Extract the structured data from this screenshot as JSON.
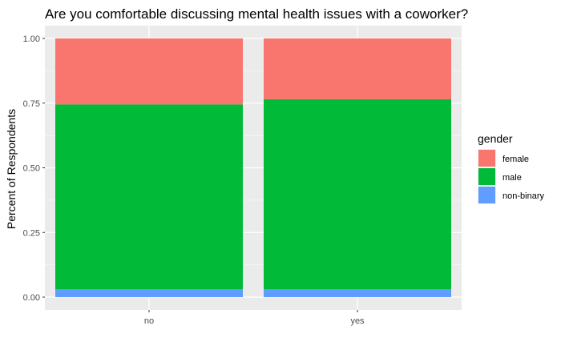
{
  "chart_data": {
    "type": "bar",
    "stacked": true,
    "title": "Are you comfortable discussing mental health issues with a coworker?",
    "xlabel": "",
    "ylabel": "Percent of Respondents",
    "categories": [
      "no",
      "yes"
    ],
    "ylim": [
      0,
      1
    ],
    "yticks": [
      "0.00",
      "0.25",
      "0.50",
      "0.75",
      "1.00"
    ],
    "ytick_values": [
      0,
      0.25,
      0.5,
      0.75,
      1.0
    ],
    "grid": true,
    "legend": {
      "title": "gender",
      "position": "right",
      "entries": [
        "female",
        "male",
        "non-binary"
      ]
    },
    "series": [
      {
        "name": "non-binary",
        "color": "#619CFF",
        "values": [
          0.03,
          0.03
        ]
      },
      {
        "name": "male",
        "color": "#00BA38",
        "values": [
          0.715,
          0.735
        ]
      },
      {
        "name": "female",
        "color": "#F8766D",
        "values": [
          0.255,
          0.235
        ]
      }
    ],
    "panel_color": "#EBEBEB",
    "grid_color": "#FFFFFF"
  }
}
